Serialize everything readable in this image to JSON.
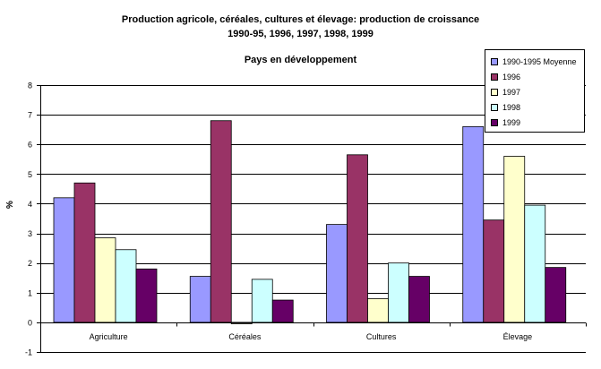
{
  "chart_data": {
    "type": "bar",
    "title_line1": "Production agricole, céréales, cultures et élevage: production de croissance",
    "title_line2": "1990-95, 1996, 1997, 1998, 1999",
    "subtitle": "Pays en développement",
    "ylabel": "%",
    "ylim": [
      -1,
      8
    ],
    "yticks": [
      "8",
      "7",
      "6",
      "5",
      "4",
      "3",
      "2",
      "1",
      "0",
      "-1"
    ],
    "categories": [
      "Agriculture",
      "Céréales",
      "Cultures",
      "Élevage"
    ],
    "series": [
      {
        "name": "1990-1995 Moyenne",
        "color": "#9999FF",
        "values": [
          4.2,
          1.55,
          3.3,
          6.6
        ]
      },
      {
        "name": "1996",
        "color": "#993366",
        "values": [
          4.7,
          6.8,
          5.65,
          3.45
        ]
      },
      {
        "name": "1997",
        "color": "#FFFFCC",
        "values": [
          2.85,
          -0.05,
          0.8,
          5.6
        ]
      },
      {
        "name": "1998",
        "color": "#CCFFFF",
        "values": [
          2.45,
          1.45,
          2.0,
          3.95
        ]
      },
      {
        "name": "1999",
        "color": "#660066",
        "values": [
          1.8,
          0.75,
          1.55,
          1.85
        ]
      }
    ]
  }
}
